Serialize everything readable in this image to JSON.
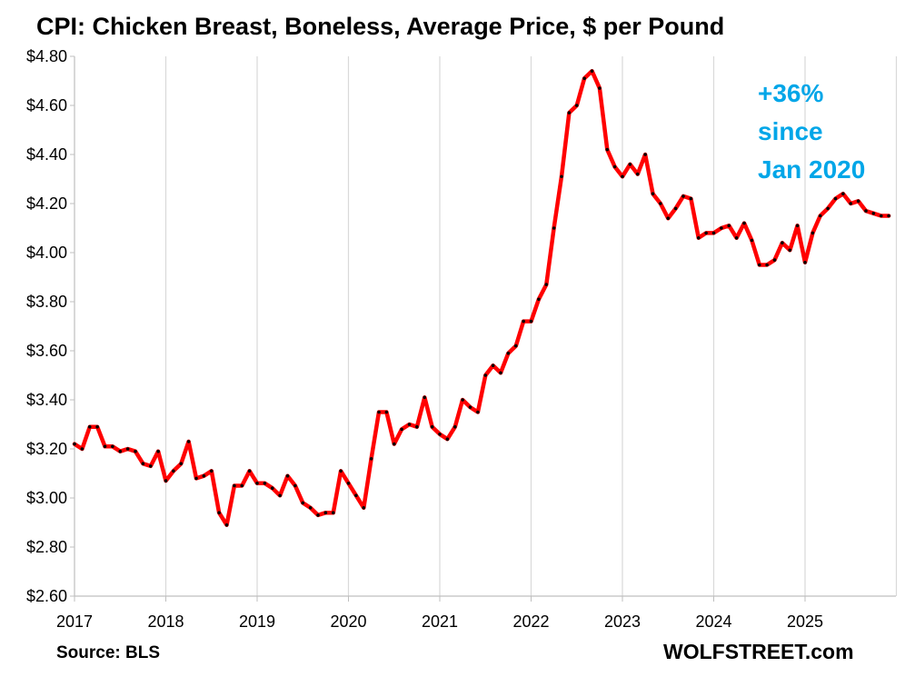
{
  "chart_data": {
    "type": "line",
    "title": "CPI: Chicken Breast, Boneless, Average Price, $ per Pound",
    "xlabel": "",
    "ylabel": "",
    "ylim": [
      2.6,
      4.8
    ],
    "y_ticks": [
      "$2.60",
      "$2.80",
      "$3.00",
      "$3.20",
      "$3.40",
      "$3.60",
      "$3.80",
      "$4.00",
      "$4.20",
      "$4.40",
      "$4.60",
      "$4.80"
    ],
    "x_ticks": [
      "2017",
      "2018",
      "2019",
      "2020",
      "2021",
      "2022",
      "2023",
      "2024",
      "2025"
    ],
    "x_start": "2017-01",
    "grid": "vertical",
    "line_color": "#FF0000",
    "marker_color": "#000000",
    "series": [
      {
        "values": [
          3.22,
          3.2,
          3.29,
          3.29,
          3.21,
          3.21,
          3.19,
          3.2,
          3.19,
          3.14,
          3.13,
          3.19,
          3.07,
          3.11,
          3.14,
          3.23,
          3.08,
          3.09,
          3.11,
          2.94,
          2.89,
          3.05,
          3.05,
          3.11,
          3.06,
          3.06,
          3.04,
          3.01,
          3.09,
          3.05,
          2.98,
          2.96,
          2.93,
          2.94,
          2.94,
          3.11,
          3.06,
          3.01,
          2.96,
          3.16,
          3.35,
          3.35,
          3.22,
          3.28,
          3.3,
          3.29,
          3.41,
          3.29,
          3.26,
          3.24,
          3.29,
          3.4,
          3.37,
          3.35,
          3.5,
          3.54,
          3.51,
          3.59,
          3.62,
          3.72,
          3.72,
          3.81,
          3.87,
          4.1,
          4.31,
          4.57,
          4.6,
          4.71,
          4.74,
          4.67,
          4.42,
          4.35,
          4.31,
          4.36,
          4.32,
          4.4,
          4.24,
          4.2,
          4.14,
          4.18,
          4.23,
          4.22,
          4.06,
          4.08,
          4.08,
          4.1,
          4.11,
          4.06,
          4.12,
          4.05,
          3.95,
          3.95,
          3.97,
          4.04,
          4.01,
          4.11,
          3.96,
          4.08,
          4.15,
          4.18,
          4.22,
          4.24,
          4.2,
          4.21,
          4.17,
          4.16,
          4.15,
          4.15
        ]
      }
    ]
  },
  "annotation": {
    "lines": [
      "+36%",
      "since",
      "Jan 2020"
    ],
    "color": "#00A6E8"
  },
  "footer": {
    "source": "Source: BLS",
    "brand": "WOLFSTREET.com"
  }
}
